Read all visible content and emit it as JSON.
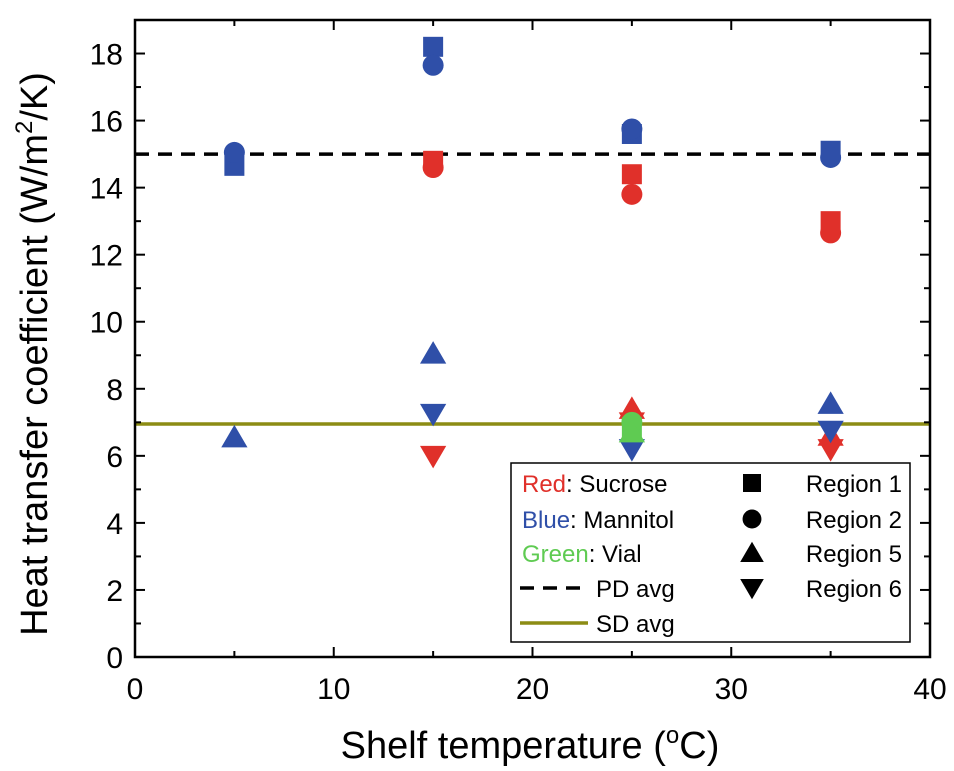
{
  "chart_data": {
    "type": "scatter",
    "title": "",
    "xlabel": "Shelf temperature (",
    "xlabel_sup": "o",
    "xlabel_end": "C)",
    "ylabel": "Heat transfer coefficient (W/m",
    "ylabel_sup": "2",
    "ylabel_end": "/K)",
    "xlim": [
      0,
      40
    ],
    "ylim": [
      0,
      19
    ],
    "x_ticks": [
      "0",
      "10",
      "20",
      "30",
      "40"
    ],
    "y_ticks": [
      "0",
      "2",
      "4",
      "6",
      "8",
      "10",
      "12",
      "14",
      "16",
      "18"
    ],
    "grid": false,
    "legend_position": "bottom-right",
    "colors": {
      "red": "#e0302a",
      "blue": "#2f4fa8",
      "green": "#5fcb52",
      "sd_line": "#8c8c14",
      "pd_line": "#000000"
    },
    "legend": {
      "color_entries": [
        {
          "key": "Red",
          "rest": ": Sucrose",
          "color": "#e0302a"
        },
        {
          "key": "Blue",
          "rest": ": Mannitol",
          "color": "#2f4fa8"
        },
        {
          "key": "Green",
          "rest": ": Vial",
          "color": "#5fcb52"
        }
      ],
      "line_entries": [
        {
          "label": "PD avg",
          "style": "dashed",
          "color": "#000000"
        },
        {
          "label": "SD avg",
          "style": "solid",
          "color": "#8c8c14"
        }
      ],
      "marker_entries": [
        {
          "label": "Region 1",
          "marker": "square"
        },
        {
          "label": "Region 2",
          "marker": "circle"
        },
        {
          "label": "Region 5",
          "marker": "triangle-up"
        },
        {
          "label": "Region 6",
          "marker": "triangle-down"
        }
      ]
    },
    "reference_lines": [
      {
        "name": "PD avg",
        "y": 15.0,
        "style": "dashed",
        "color": "#000000"
      },
      {
        "name": "SD avg",
        "y": 6.95,
        "style": "solid",
        "color": "#8c8c14"
      }
    ],
    "series": [
      {
        "material": "Sucrose",
        "region": "Region 1",
        "color": "#e0302a",
        "marker": "square",
        "points": [
          [
            15,
            14.8
          ],
          [
            25,
            14.4
          ],
          [
            35,
            13.0
          ]
        ]
      },
      {
        "material": "Sucrose",
        "region": "Region 2",
        "color": "#e0302a",
        "marker": "circle",
        "points": [
          [
            15,
            14.6
          ],
          [
            25,
            13.8
          ],
          [
            35,
            12.65
          ]
        ]
      },
      {
        "material": "Sucrose",
        "region": "Region 5",
        "color": "#e0302a",
        "marker": "triangle-up",
        "points": [
          [
            25,
            7.4
          ],
          [
            35,
            6.6
          ]
        ]
      },
      {
        "material": "Sucrose",
        "region": "Region 6",
        "color": "#e0302a",
        "marker": "triangle-down",
        "points": [
          [
            15,
            6.0
          ],
          [
            25,
            7.0
          ],
          [
            35,
            6.2
          ]
        ]
      },
      {
        "material": "Mannitol",
        "region": "Region 1",
        "color": "#2f4fa8",
        "marker": "square",
        "points": [
          [
            5,
            14.65
          ],
          [
            15,
            18.2
          ],
          [
            25,
            15.6
          ],
          [
            35,
            15.1
          ]
        ]
      },
      {
        "material": "Mannitol",
        "region": "Region 2",
        "color": "#2f4fa8",
        "marker": "circle",
        "points": [
          [
            5,
            15.05
          ],
          [
            15,
            17.65
          ],
          [
            25,
            15.75
          ],
          [
            35,
            14.9
          ]
        ]
      },
      {
        "material": "Mannitol",
        "region": "Region 5",
        "color": "#2f4fa8",
        "marker": "triangle-up",
        "points": [
          [
            5,
            6.55
          ],
          [
            15,
            9.05
          ],
          [
            35,
            7.55
          ]
        ]
      },
      {
        "material": "Mannitol",
        "region": "Region 6",
        "color": "#2f4fa8",
        "marker": "triangle-down",
        "points": [
          [
            15,
            7.25
          ],
          [
            25,
            6.2
          ],
          [
            35,
            6.75
          ]
        ]
      },
      {
        "material": "Vial",
        "region": "Region 1",
        "color": "#5fcb52",
        "marker": "square",
        "points": [
          [
            25,
            6.85
          ]
        ]
      },
      {
        "material": "Vial",
        "region": "Region 2",
        "color": "#5fcb52",
        "marker": "circle",
        "points": [
          [
            25,
            7.0
          ]
        ]
      },
      {
        "material": "Vial",
        "region": "Region 5",
        "color": "#5fcb52",
        "marker": "triangle-up",
        "points": [
          [
            25,
            6.7
          ]
        ]
      }
    ]
  }
}
